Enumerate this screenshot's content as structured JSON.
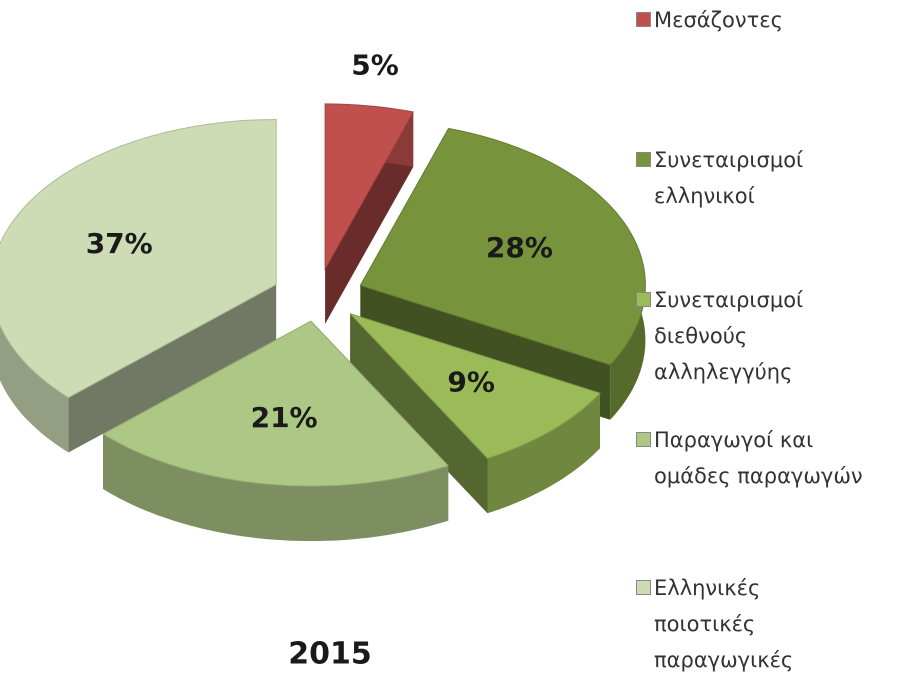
{
  "chart_data": {
    "type": "pie",
    "title": "2015",
    "categories": [
      "Μεσάζοντες",
      "Συνεταιρισμοί ελληνικοί",
      "Συνεταιρισμοί διεθνούς αλληλεγγύης",
      "Παραγωγοί και ομάδες παραγωγών",
      "Ελληνικές ποιοτικές παραγωγικές μονάδες"
    ],
    "values": [
      5,
      28,
      9,
      21,
      37
    ],
    "value_labels": [
      "5%",
      "28%",
      "9%",
      "21%",
      "37%"
    ],
    "colors": [
      "#c0504d",
      "#77933c",
      "#9bbb59",
      "#adc785",
      "#cddcb5"
    ],
    "legend": "right"
  }
}
